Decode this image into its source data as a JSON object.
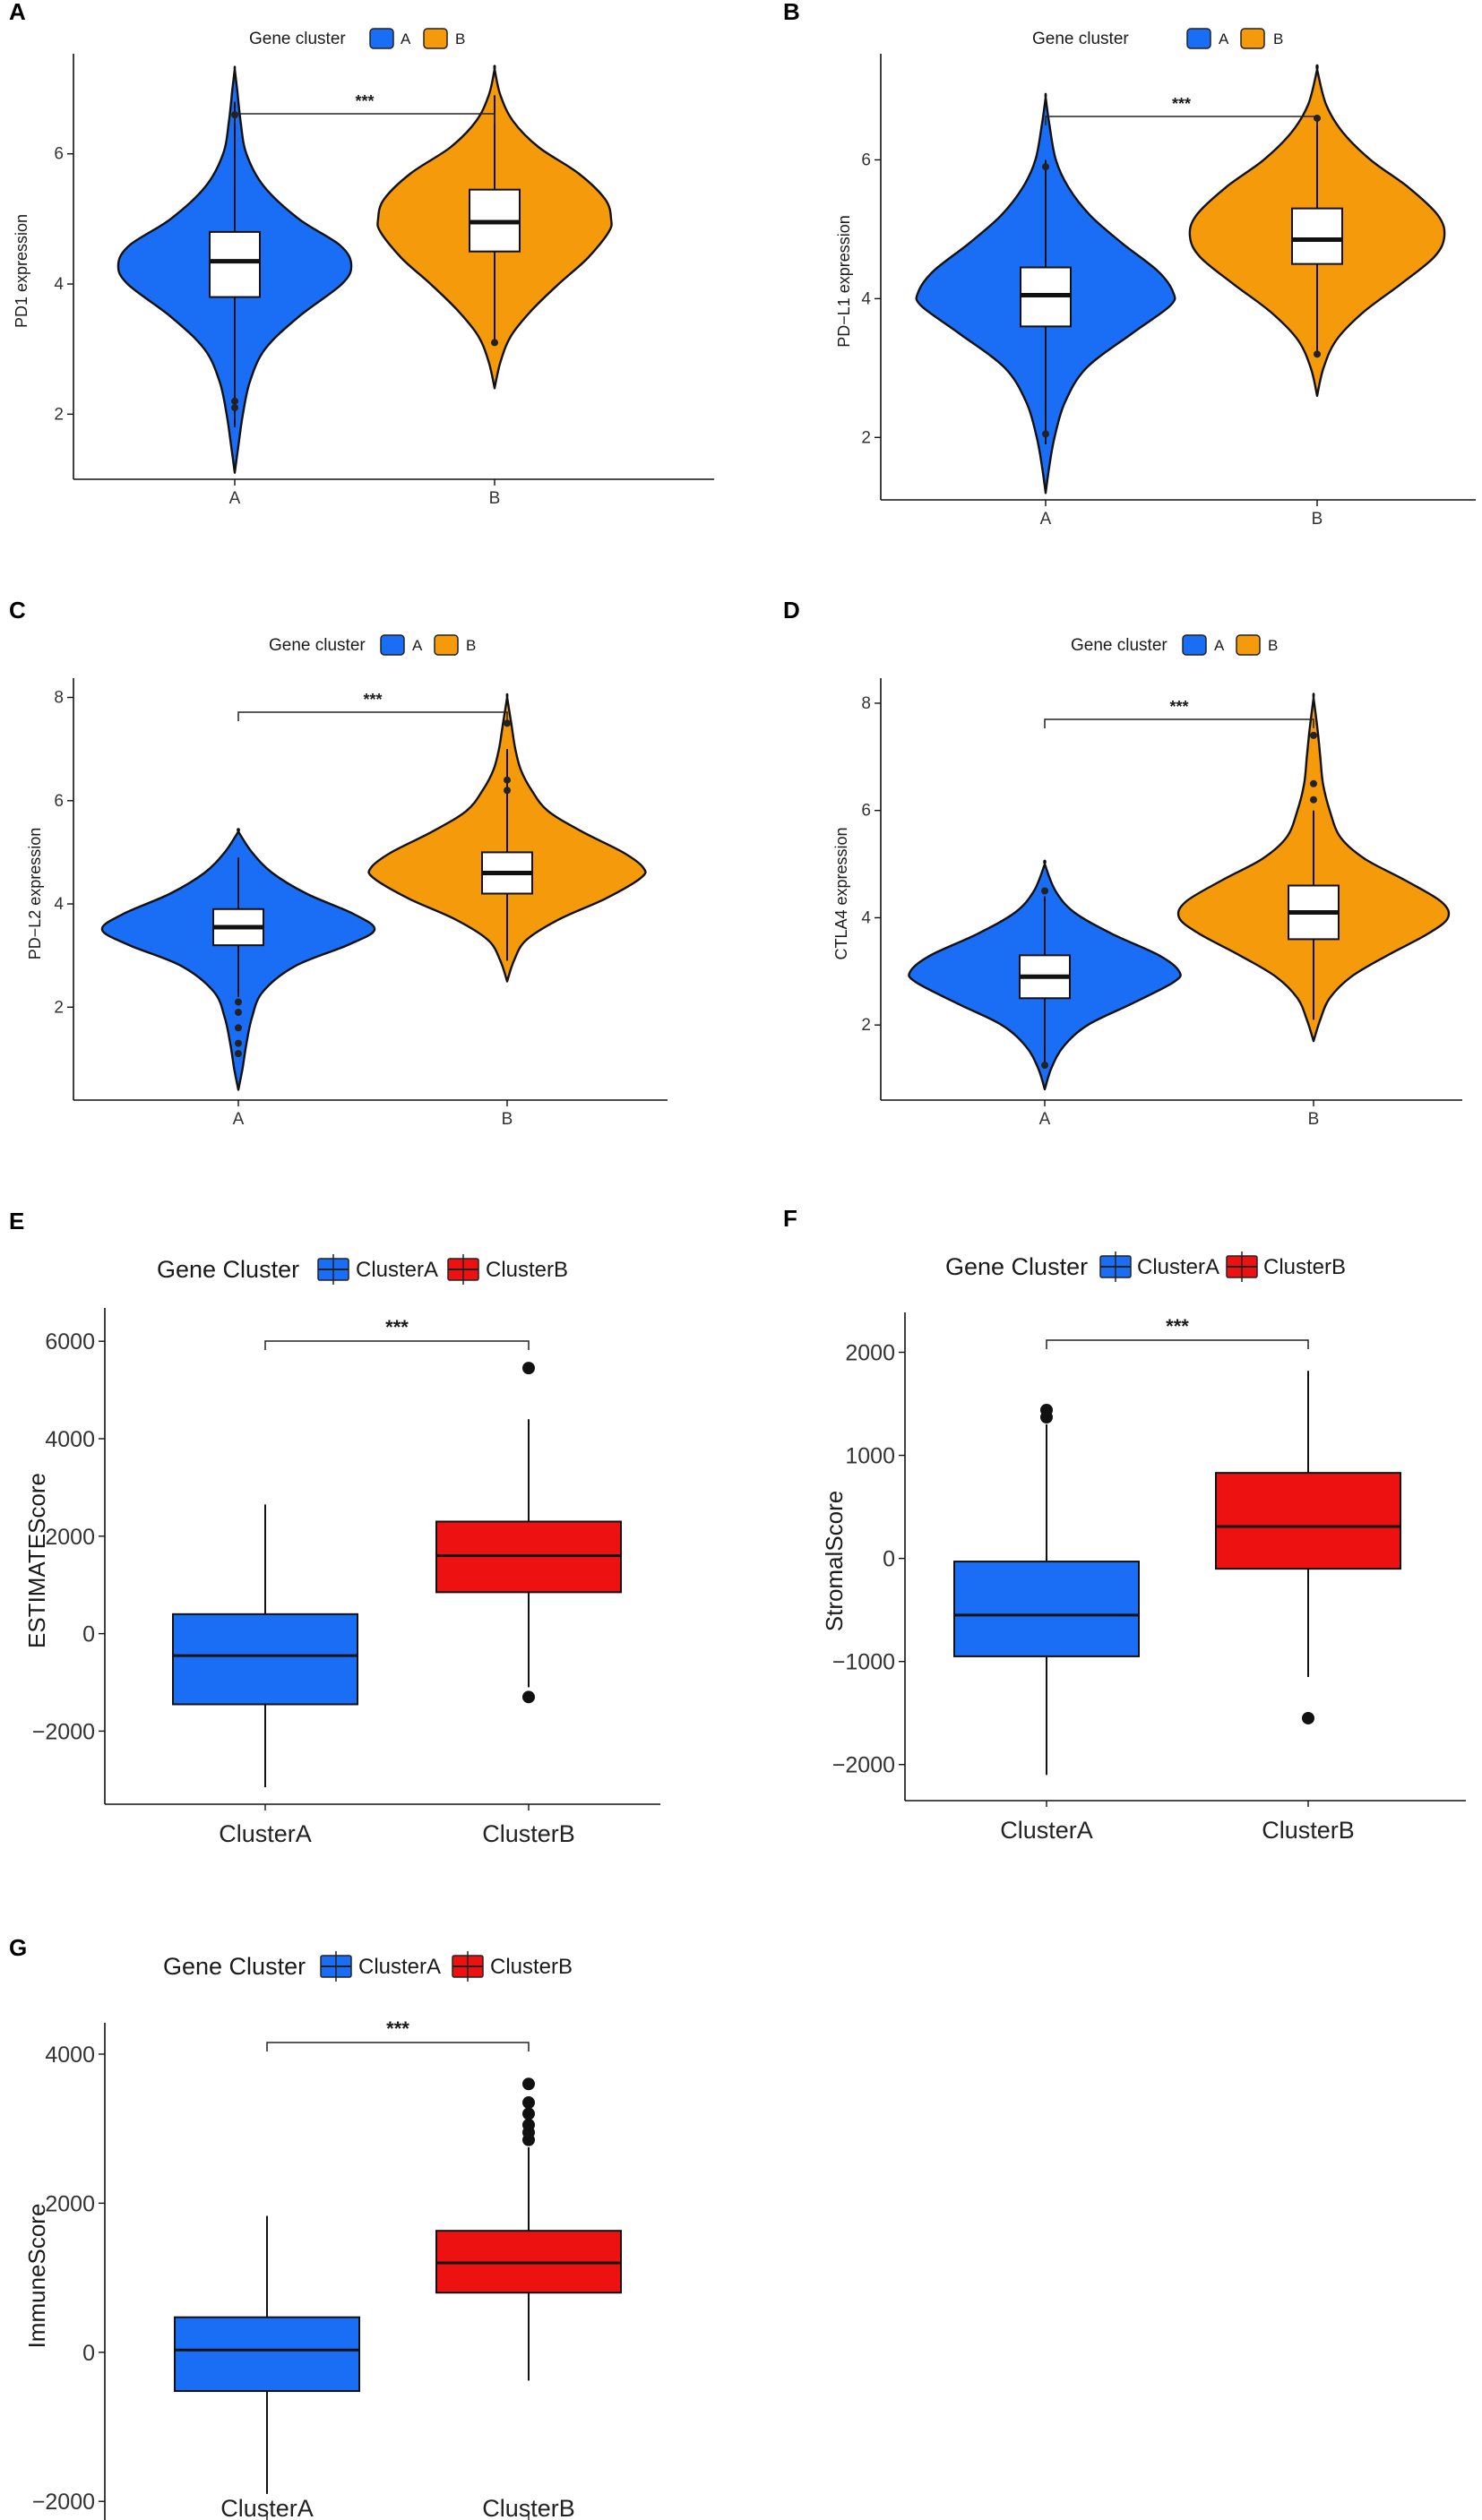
{
  "figure": {
    "colors": {
      "clusterA": "#1a6ef5",
      "clusterB_violin": "#f59a0a",
      "clusterB_box": "#ee1111"
    }
  },
  "chart_data": [
    {
      "panel": "A",
      "type": "violin",
      "legend_title": "Gene cluster",
      "legend": [
        "A",
        "B"
      ],
      "categories": [
        "A",
        "B"
      ],
      "ylabel": "PD1 expression",
      "ylim": [
        1,
        7.4
      ],
      "yticks": [
        2,
        4,
        6
      ],
      "significance": "***",
      "groups": [
        {
          "name": "A",
          "color": "#1a6ef5",
          "min": 1.1,
          "max": 7.3,
          "q1": 3.8,
          "median": 4.35,
          "q3": 4.8,
          "whisker_low": 1.8,
          "whisker_high": 6.8,
          "outliers": [
            2.1,
            2.2,
            6.6
          ],
          "profile": [
            [
              1.1,
              0
            ],
            [
              1.5,
              0.03
            ],
            [
              2.0,
              0.07
            ],
            [
              2.5,
              0.13
            ],
            [
              3.0,
              0.26
            ],
            [
              3.5,
              0.55
            ],
            [
              4.0,
              0.92
            ],
            [
              4.3,
              1.0
            ],
            [
              4.6,
              0.9
            ],
            [
              5.0,
              0.55
            ],
            [
              5.5,
              0.25
            ],
            [
              6.0,
              0.1
            ],
            [
              6.5,
              0.05
            ],
            [
              7.0,
              0.02
            ],
            [
              7.3,
              0
            ]
          ]
        },
        {
          "name": "B",
          "color": "#f59a0a",
          "min": 2.4,
          "max": 7.3,
          "q1": 4.5,
          "median": 4.95,
          "q3": 5.45,
          "whisker_low": 3.1,
          "whisker_high": 6.9,
          "outliers": [
            3.1
          ],
          "profile": [
            [
              2.4,
              0
            ],
            [
              2.8,
              0.05
            ],
            [
              3.2,
              0.14
            ],
            [
              3.6,
              0.32
            ],
            [
              4.0,
              0.55
            ],
            [
              4.4,
              0.8
            ],
            [
              4.8,
              0.98
            ],
            [
              5.0,
              1.0
            ],
            [
              5.3,
              0.95
            ],
            [
              5.7,
              0.72
            ],
            [
              6.1,
              0.38
            ],
            [
              6.5,
              0.16
            ],
            [
              6.9,
              0.05
            ],
            [
              7.3,
              0
            ]
          ]
        }
      ]
    },
    {
      "panel": "B",
      "type": "violin",
      "legend_title": "Gene cluster",
      "legend": [
        "A",
        "B"
      ],
      "categories": [
        "A",
        "B"
      ],
      "ylabel": "PD−L1 expression",
      "ylim": [
        1.1,
        7.4
      ],
      "yticks": [
        2,
        4,
        6
      ],
      "significance": "***",
      "groups": [
        {
          "name": "A",
          "color": "#1a6ef5",
          "min": 1.2,
          "max": 6.9,
          "q1": 3.6,
          "median": 4.05,
          "q3": 4.45,
          "whisker_low": 1.9,
          "whisker_high": 6.0,
          "outliers": [
            2.05,
            5.9
          ],
          "profile": [
            [
              1.2,
              0
            ],
            [
              1.6,
              0.03
            ],
            [
              2.0,
              0.07
            ],
            [
              2.5,
              0.15
            ],
            [
              3.0,
              0.32
            ],
            [
              3.5,
              0.68
            ],
            [
              3.9,
              0.98
            ],
            [
              4.1,
              1.0
            ],
            [
              4.4,
              0.88
            ],
            [
              4.8,
              0.6
            ],
            [
              5.2,
              0.35
            ],
            [
              5.6,
              0.18
            ],
            [
              6.0,
              0.08
            ],
            [
              6.5,
              0.03
            ],
            [
              6.9,
              0
            ]
          ]
        },
        {
          "name": "B",
          "color": "#f59a0a",
          "min": 2.6,
          "max": 7.3,
          "q1": 4.5,
          "median": 4.85,
          "q3": 5.3,
          "whisker_low": 3.2,
          "whisker_high": 6.6,
          "outliers": [
            3.2,
            6.6
          ],
          "profile": [
            [
              2.6,
              0
            ],
            [
              3.0,
              0.05
            ],
            [
              3.4,
              0.15
            ],
            [
              3.8,
              0.36
            ],
            [
              4.2,
              0.65
            ],
            [
              4.6,
              0.92
            ],
            [
              4.9,
              1.0
            ],
            [
              5.2,
              0.95
            ],
            [
              5.6,
              0.72
            ],
            [
              6.0,
              0.42
            ],
            [
              6.4,
              0.2
            ],
            [
              6.8,
              0.07
            ],
            [
              7.3,
              0
            ]
          ]
        }
      ]
    },
    {
      "panel": "C",
      "type": "violin",
      "legend_title": "Gene cluster",
      "legend": [
        "A",
        "B"
      ],
      "categories": [
        "A",
        "B"
      ],
      "ylabel": "PD−L2 expression",
      "ylim": [
        0.2,
        8.2
      ],
      "yticks": [
        2,
        4,
        6,
        8
      ],
      "significance": "***",
      "groups": [
        {
          "name": "A",
          "color": "#1a6ef5",
          "min": 0.4,
          "max": 5.4,
          "q1": 3.2,
          "median": 3.55,
          "q3": 3.9,
          "whisker_low": 2.2,
          "whisker_high": 4.9,
          "outliers": [
            1.1,
            1.3,
            1.6,
            1.9,
            2.1
          ],
          "profile": [
            [
              0.4,
              0
            ],
            [
              0.8,
              0.03
            ],
            [
              1.3,
              0.06
            ],
            [
              1.8,
              0.1
            ],
            [
              2.3,
              0.18
            ],
            [
              2.8,
              0.42
            ],
            [
              3.2,
              0.8
            ],
            [
              3.5,
              1.0
            ],
            [
              3.8,
              0.85
            ],
            [
              4.2,
              0.5
            ],
            [
              4.6,
              0.25
            ],
            [
              5.0,
              0.1
            ],
            [
              5.4,
              0
            ]
          ]
        },
        {
          "name": "B",
          "color": "#f59a0a",
          "min": 2.5,
          "max": 8.0,
          "q1": 4.2,
          "median": 4.6,
          "q3": 5.0,
          "whisker_low": 2.9,
          "whisker_high": 7.0,
          "outliers": [
            6.2,
            6.4,
            7.5
          ],
          "profile": [
            [
              2.5,
              0
            ],
            [
              2.9,
              0.05
            ],
            [
              3.3,
              0.14
            ],
            [
              3.7,
              0.38
            ],
            [
              4.1,
              0.72
            ],
            [
              4.5,
              0.98
            ],
            [
              4.7,
              1.0
            ],
            [
              5.0,
              0.85
            ],
            [
              5.4,
              0.55
            ],
            [
              5.8,
              0.3
            ],
            [
              6.2,
              0.18
            ],
            [
              6.6,
              0.1
            ],
            [
              7.0,
              0.06
            ],
            [
              7.5,
              0.03
            ],
            [
              8.0,
              0
            ]
          ]
        }
      ]
    },
    {
      "panel": "D",
      "type": "violin",
      "legend_title": "Gene cluster",
      "legend": [
        "A",
        "B"
      ],
      "categories": [
        "A",
        "B"
      ],
      "ylabel": "CTLA4 expression",
      "ylim": [
        0.6,
        8.3
      ],
      "yticks": [
        2,
        4,
        6,
        8
      ],
      "significance": "***",
      "groups": [
        {
          "name": "A",
          "color": "#1a6ef5",
          "min": 0.8,
          "max": 5.0,
          "q1": 2.5,
          "median": 2.9,
          "q3": 3.3,
          "whisker_low": 1.3,
          "whisker_high": 4.4,
          "outliers": [
            1.25,
            4.5
          ],
          "profile": [
            [
              0.8,
              0
            ],
            [
              1.2,
              0.05
            ],
            [
              1.6,
              0.14
            ],
            [
              2.0,
              0.32
            ],
            [
              2.4,
              0.65
            ],
            [
              2.8,
              0.96
            ],
            [
              3.0,
              1.0
            ],
            [
              3.3,
              0.85
            ],
            [
              3.7,
              0.5
            ],
            [
              4.1,
              0.22
            ],
            [
              4.5,
              0.08
            ],
            [
              5.0,
              0
            ]
          ]
        },
        {
          "name": "B",
          "color": "#f59a0a",
          "min": 1.7,
          "max": 8.1,
          "q1": 3.6,
          "median": 4.1,
          "q3": 4.6,
          "whisker_low": 2.1,
          "whisker_high": 6.0,
          "outliers": [
            6.2,
            6.5,
            7.4
          ],
          "profile": [
            [
              1.7,
              0
            ],
            [
              2.1,
              0.05
            ],
            [
              2.5,
              0.12
            ],
            [
              2.9,
              0.28
            ],
            [
              3.3,
              0.55
            ],
            [
              3.7,
              0.85
            ],
            [
              4.0,
              1.0
            ],
            [
              4.3,
              0.95
            ],
            [
              4.7,
              0.68
            ],
            [
              5.1,
              0.38
            ],
            [
              5.5,
              0.2
            ],
            [
              6.0,
              0.12
            ],
            [
              6.5,
              0.07
            ],
            [
              7.0,
              0.05
            ],
            [
              7.5,
              0.03
            ],
            [
              8.1,
              0
            ]
          ]
        }
      ]
    },
    {
      "panel": "E",
      "type": "box",
      "legend_title": "Gene Cluster",
      "legend": [
        "ClusterA",
        "ClusterB"
      ],
      "categories": [
        "ClusterA",
        "ClusterB"
      ],
      "ylabel": "ESTIMATEScore",
      "ylim": [
        -3500,
        6500
      ],
      "yticks": [
        -2000,
        0,
        2000,
        4000,
        6000
      ],
      "significance": "***",
      "groups": [
        {
          "name": "ClusterA",
          "color": "#1a6ef5",
          "q1": -1450,
          "median": -450,
          "q3": 400,
          "whisker_low": -3150,
          "whisker_high": 2650,
          "outliers": []
        },
        {
          "name": "ClusterB",
          "color": "#ee1111",
          "q1": 850,
          "median": 1600,
          "q3": 2300,
          "whisker_low": -1100,
          "whisker_high": 4400,
          "outliers": [
            -1300,
            5450
          ]
        }
      ]
    },
    {
      "panel": "F",
      "type": "box",
      "legend_title": "Gene Cluster",
      "legend": [
        "ClusterA",
        "ClusterB"
      ],
      "categories": [
        "ClusterA",
        "ClusterB"
      ],
      "ylabel": "StromalScore",
      "ylim": [
        -2350,
        2300
      ],
      "yticks": [
        -2000,
        -1000,
        0,
        1000,
        2000
      ],
      "significance": "***",
      "groups": [
        {
          "name": "ClusterA",
          "color": "#1a6ef5",
          "q1": -950,
          "median": -550,
          "q3": -30,
          "whisker_low": -2100,
          "whisker_high": 1300,
          "outliers": [
            1370,
            1440
          ]
        },
        {
          "name": "ClusterB",
          "color": "#ee1111",
          "q1": -100,
          "median": 310,
          "q3": 830,
          "whisker_low": -1150,
          "whisker_high": 1820,
          "outliers": [
            -1550
          ]
        }
      ]
    },
    {
      "panel": "G",
      "type": "box",
      "legend_title": "Gene Cluster",
      "legend": [
        "ClusterA",
        "ClusterB"
      ],
      "categories": [
        "ClusterA",
        "ClusterB"
      ],
      "ylabel": "ImmuneScore",
      "ylim": [
        -2250,
        4300
      ],
      "yticks": [
        -2000,
        0,
        2000,
        4000
      ],
      "significance": "***",
      "groups": [
        {
          "name": "ClusterA",
          "color": "#1a6ef5",
          "q1": -520,
          "median": 30,
          "q3": 470,
          "whisker_low": -1900,
          "whisker_high": 1830,
          "outliers": []
        },
        {
          "name": "ClusterB",
          "color": "#ee1111",
          "q1": 800,
          "median": 1200,
          "q3": 1630,
          "whisker_low": -380,
          "whisker_high": 2750,
          "outliers": [
            2850,
            2950,
            3050,
            3200,
            3350,
            3600
          ]
        }
      ]
    }
  ]
}
